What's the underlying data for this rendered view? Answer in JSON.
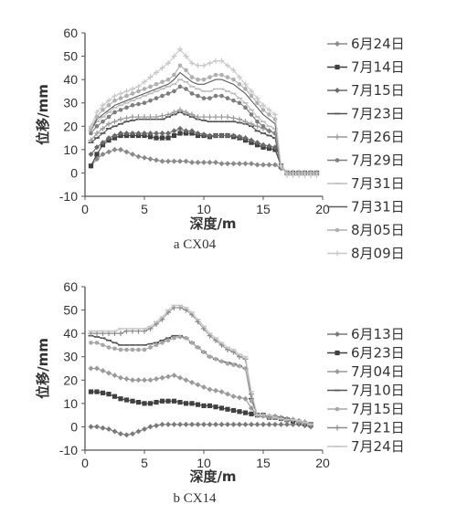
{
  "chart_data": [
    {
      "type": "line",
      "caption": "a  CX04",
      "xlabel": "深度/m",
      "ylabel": "位移/mm",
      "xlim": [
        0,
        20
      ],
      "ylim": [
        -10,
        60
      ],
      "xticks": [
        "0",
        "5",
        "10",
        "15",
        "20"
      ],
      "yticks": [
        "-10",
        "0",
        "10",
        "20",
        "30",
        "40",
        "50",
        "60"
      ],
      "grid": false,
      "legend_position": "right",
      "x": [
        0.5,
        1,
        1.5,
        2,
        2.5,
        3,
        3.5,
        4,
        4.5,
        5,
        5.5,
        6,
        6.5,
        7,
        7.5,
        8,
        8.5,
        9,
        9.5,
        10,
        10.5,
        11,
        11.5,
        12,
        12.5,
        13,
        13.5,
        14,
        14.5,
        15,
        15.5,
        16,
        16.5,
        17,
        17.5,
        18,
        18.5,
        19,
        19.5
      ],
      "series": [
        {
          "name": "6月24日",
          "color": "#8a8a8a",
          "marker": "diamond",
          "values": [
            3,
            6,
            8,
            9,
            10,
            10,
            9,
            8,
            7,
            6.5,
            6,
            5.5,
            5,
            5,
            5,
            5,
            5,
            4.5,
            4.5,
            4.5,
            4.5,
            4.5,
            4,
            4,
            4,
            4,
            4,
            4,
            3.5,
            3.5,
            3.5,
            3.5,
            2,
            0,
            0,
            0,
            0,
            0,
            0
          ]
        },
        {
          "name": "7月14日",
          "color": "#404040",
          "marker": "square",
          "values": [
            3,
            8,
            12,
            14,
            15,
            16,
            16,
            16,
            16,
            16,
            15.5,
            15,
            15,
            15,
            16,
            17,
            17,
            17,
            16,
            16,
            15.5,
            16,
            16,
            16,
            15.5,
            15,
            14,
            13,
            12,
            11,
            10.5,
            10,
            3,
            0,
            0,
            0,
            0,
            0,
            0
          ]
        },
        {
          "name": "7月15日",
          "color": "#6a6a6a",
          "marker": "diamond",
          "values": [
            8,
            11,
            13,
            15,
            16,
            17,
            17,
            17,
            17,
            17,
            17,
            17,
            17,
            17,
            18,
            19,
            18,
            18,
            17,
            16.5,
            16,
            16,
            16,
            16,
            16,
            15.5,
            15,
            14,
            13,
            12,
            11.5,
            11,
            3,
            0,
            0,
            0,
            0,
            0,
            0
          ]
        },
        {
          "name": "7月23日",
          "color": "#505050",
          "marker": "dash",
          "values": [
            13,
            15,
            17,
            19,
            20,
            21,
            22,
            22.5,
            23,
            23,
            23,
            23,
            23,
            24,
            25,
            26,
            25,
            24,
            23,
            22.5,
            22,
            22,
            22,
            22,
            22,
            21.5,
            21,
            20,
            18,
            17,
            16,
            15,
            3,
            0,
            0,
            0,
            0,
            0,
            0
          ]
        },
        {
          "name": "7月26日",
          "color": "#9a9a9a",
          "marker": "cross",
          "values": [
            14,
            17,
            19,
            21,
            22,
            23,
            23.5,
            24,
            24,
            24,
            24,
            24,
            24.5,
            25,
            26,
            27,
            26,
            25,
            24,
            24,
            24,
            24,
            24,
            24,
            23.5,
            23,
            22,
            21,
            20,
            19,
            18,
            17,
            3,
            0,
            0,
            0,
            0,
            0,
            0
          ]
        },
        {
          "name": "7月29日",
          "color": "#7e7e7e",
          "marker": "dot",
          "values": [
            17,
            20,
            22,
            24,
            26,
            27,
            28,
            29,
            29.5,
            30,
            31,
            32,
            33,
            34,
            35,
            37,
            36,
            34,
            33,
            32,
            32,
            33,
            33,
            32,
            31,
            30,
            28,
            25,
            22,
            20,
            18,
            17,
            3,
            0,
            0,
            0,
            0,
            0,
            0
          ]
        },
        {
          "name": "7月31日",
          "color": "#bdbdbd",
          "marker": "dash",
          "values": [
            18,
            22,
            24,
            26,
            28,
            29,
            30,
            31,
            32,
            33,
            34,
            35,
            36,
            37,
            38,
            40,
            39,
            37,
            36,
            35,
            35,
            36,
            36,
            35,
            34,
            32,
            30,
            27,
            24,
            22,
            20,
            19,
            3,
            0,
            0,
            0,
            0,
            0,
            0
          ]
        },
        {
          "name": "7月31日",
          "color": "#5a5a5a",
          "marker": "none",
          "values": [
            18,
            23,
            25,
            27,
            29,
            30,
            31,
            32,
            33,
            34,
            35,
            36,
            37,
            38,
            40,
            43,
            41,
            39,
            38,
            38,
            39,
            40,
            40,
            39,
            38,
            36,
            34,
            31,
            28,
            25,
            23,
            21,
            3,
            0,
            0,
            0,
            0,
            0,
            0
          ]
        },
        {
          "name": "8月05日",
          "color": "#b0b0b0",
          "marker": "dot",
          "values": [
            19,
            24,
            27,
            29,
            31,
            32,
            33,
            34,
            35,
            36,
            37,
            38,
            39,
            40,
            42,
            46,
            44,
            41,
            40,
            40,
            41,
            42,
            42,
            41,
            40,
            38,
            36,
            33,
            30,
            27,
            25,
            23,
            3,
            0,
            0,
            0,
            0,
            0,
            0
          ]
        },
        {
          "name": "8月09日",
          "color": "#c8c8c8",
          "marker": "cross",
          "values": [
            20,
            26,
            29,
            31,
            33,
            34,
            35,
            36,
            37,
            39,
            41,
            43,
            45,
            47,
            50,
            53,
            50,
            47,
            46,
            46,
            47,
            48,
            48,
            46,
            44,
            41,
            38,
            35,
            32,
            29,
            27,
            25,
            3,
            -1,
            -1,
            -1,
            -1,
            -1,
            -1
          ]
        }
      ]
    },
    {
      "type": "line",
      "caption": "b  CX14",
      "xlabel": "深度/m",
      "ylabel": "位移/mm",
      "xlim": [
        0,
        20
      ],
      "ylim": [
        -10,
        60
      ],
      "xticks": [
        "0",
        "5",
        "10",
        "15",
        "20"
      ],
      "yticks": [
        "-10",
        "0",
        "10",
        "20",
        "30",
        "40",
        "50",
        "60"
      ],
      "grid": false,
      "legend_position": "right",
      "x": [
        0.5,
        1,
        1.5,
        2,
        2.5,
        3,
        3.5,
        4,
        4.5,
        5,
        5.5,
        6,
        6.5,
        7,
        7.5,
        8,
        8.5,
        9,
        9.5,
        10,
        10.5,
        11,
        11.5,
        12,
        12.5,
        13,
        13.5,
        14,
        14.5,
        15,
        15.5,
        16,
        16.5,
        17,
        17.5,
        18,
        18.5,
        19
      ],
      "series": [
        {
          "name": "6月13日",
          "color": "#7a7a7a",
          "marker": "diamond",
          "values": [
            0,
            0,
            -0.5,
            -1,
            -2,
            -3,
            -3.5,
            -3,
            -2,
            -1,
            0,
            0.5,
            1,
            1,
            1,
            1,
            1,
            1,
            1,
            1,
            1,
            1,
            1,
            1,
            1,
            1,
            1,
            1,
            1,
            1,
            1,
            1,
            1,
            1,
            1,
            1,
            0.5,
            0
          ]
        },
        {
          "name": "6月23日",
          "color": "#404040",
          "marker": "square",
          "values": [
            15,
            15,
            14.5,
            14,
            13,
            12,
            11.5,
            11,
            10.5,
            10,
            10,
            10.5,
            11,
            11,
            11,
            10.5,
            10,
            10,
            9.5,
            9,
            9,
            8.5,
            8,
            7.5,
            7,
            6.5,
            6,
            5.5,
            5,
            5,
            4,
            4,
            3.5,
            3,
            2.5,
            2,
            1.5,
            1
          ]
        },
        {
          "name": "7月04日",
          "color": "#9a9a9a",
          "marker": "diamond",
          "values": [
            25,
            25,
            24,
            23,
            22,
            21,
            20.5,
            20,
            20,
            20,
            20,
            20.5,
            21,
            21.5,
            22,
            21,
            20,
            19,
            18,
            17,
            16,
            15.5,
            15,
            14,
            13,
            12.5,
            12,
            8,
            5,
            5,
            4.5,
            4.5,
            4,
            3.5,
            3,
            2,
            1.5,
            1
          ]
        },
        {
          "name": "7月10日",
          "color": "#555555",
          "marker": "dash",
          "values": [
            39,
            38.5,
            38,
            37,
            36,
            35,
            35,
            35,
            35,
            35,
            35.5,
            36,
            37,
            38,
            39,
            39,
            38,
            36,
            34,
            32,
            30,
            29,
            28,
            27.5,
            27,
            26,
            25,
            12,
            5,
            4.5,
            4,
            4,
            4,
            3.5,
            3,
            2.5,
            2,
            1
          ]
        },
        {
          "name": "7月15日",
          "color": "#a6a6a6",
          "marker": "dot",
          "values": [
            36,
            36,
            35,
            34,
            33.5,
            33,
            33,
            33,
            33,
            33,
            34,
            35,
            36,
            37,
            38,
            38.5,
            38,
            36,
            34,
            32,
            30,
            29,
            28,
            27,
            26.5,
            26,
            25,
            11,
            5,
            4.5,
            4,
            4,
            3.5,
            3,
            3,
            2.5,
            2,
            1
          ]
        },
        {
          "name": "7月21日",
          "color": "#8c8c8c",
          "marker": "cross",
          "values": [
            40,
            40,
            40,
            40,
            40,
            40,
            41,
            41,
            41,
            41,
            42,
            44,
            46,
            49,
            51,
            51,
            50,
            48,
            45,
            42,
            39,
            37,
            35,
            33,
            32,
            30,
            29,
            14,
            5,
            5,
            4.5,
            4,
            3.5,
            3,
            3,
            2.5,
            2,
            1
          ]
        },
        {
          "name": "7月24日",
          "color": "#c4c4c4",
          "marker": "dash",
          "values": [
            41,
            41,
            41,
            41,
            41,
            42,
            42,
            42,
            42,
            42,
            43,
            45,
            47,
            50,
            52,
            52,
            51,
            49,
            46,
            43,
            40,
            38,
            36,
            34,
            33,
            31,
            30,
            15,
            5,
            5,
            5,
            4,
            3.5,
            3,
            3,
            2.5,
            2,
            1
          ]
        }
      ]
    }
  ]
}
